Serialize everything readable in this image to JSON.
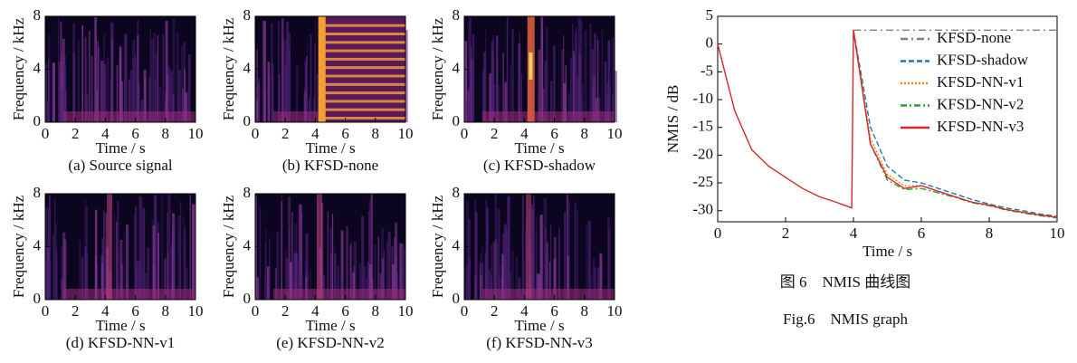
{
  "chart_data": [
    {
      "type": "spectrogram",
      "caption": "(a) Source signal",
      "xlabel": "Time / s",
      "ylabel": "Frequency / kHz",
      "xlim": [
        0,
        10
      ],
      "xticks": [
        0,
        2,
        4,
        6,
        8,
        10
      ],
      "ylim": [
        0,
        8
      ],
      "yticks": [
        0,
        4,
        8
      ]
    },
    {
      "type": "spectrogram",
      "caption": "(b) KFSD-none",
      "xlabel": "Time / s",
      "ylabel": "Frequency / kHz",
      "xlim": [
        0,
        10
      ],
      "xticks": [
        0,
        2,
        4,
        6,
        8,
        10
      ],
      "ylim": [
        0,
        8
      ],
      "yticks": [
        0,
        4,
        8
      ]
    },
    {
      "type": "spectrogram",
      "caption": "(c) KFSD-shadow",
      "xlabel": "Time / s",
      "ylabel": "Frequency / kHz",
      "xlim": [
        0,
        10
      ],
      "xticks": [
        0,
        2,
        4,
        6,
        8,
        10
      ],
      "ylim": [
        0,
        8
      ],
      "yticks": [
        0,
        4,
        8
      ]
    },
    {
      "type": "spectrogram",
      "caption": "(d) KFSD-NN-v1",
      "xlabel": "Time / s",
      "ylabel": "Frequency / kHz",
      "xlim": [
        0,
        10
      ],
      "xticks": [
        0,
        2,
        4,
        6,
        8,
        10
      ],
      "ylim": [
        0,
        8
      ],
      "yticks": [
        0,
        4,
        8
      ]
    },
    {
      "type": "spectrogram",
      "caption": "(e) KFSD-NN-v2",
      "xlabel": "Time / s",
      "ylabel": "Frequency / kHz",
      "xlim": [
        0,
        10
      ],
      "xticks": [
        0,
        2,
        4,
        6,
        8,
        10
      ],
      "ylim": [
        0,
        8
      ],
      "yticks": [
        0,
        4,
        8
      ]
    },
    {
      "type": "spectrogram",
      "caption": "(f) KFSD-NN-v3",
      "xlabel": "Time / s",
      "ylabel": "Frequency / kHz",
      "xlim": [
        0,
        10
      ],
      "xticks": [
        0,
        2,
        4,
        6,
        8,
        10
      ],
      "ylim": [
        0,
        8
      ],
      "yticks": [
        0,
        4,
        8
      ]
    },
    {
      "type": "line",
      "captions": [
        "图 6　NMIS 曲线图",
        "Fig.6　NMIS graph"
      ],
      "xlabel": "Time / s",
      "ylabel": "NMIS / dB",
      "xlim": [
        0,
        10
      ],
      "xticks": [
        0,
        2,
        4,
        6,
        8,
        10
      ],
      "ylim": [
        -32,
        5
      ],
      "yticks": [
        5,
        0,
        -5,
        -10,
        -15,
        -20,
        -25,
        -30
      ],
      "legend": "upper right",
      "x": [
        0,
        0.5,
        1,
        1.5,
        2,
        2.5,
        3,
        3.5,
        3.95,
        4,
        4.5,
        5,
        5.5,
        6,
        6.5,
        7,
        7.5,
        8,
        8.5,
        9,
        9.5,
        10
      ],
      "series": [
        {
          "name": "KFSD-none",
          "color": "#808080",
          "dash": "8,4,2,4",
          "values": [
            null,
            null,
            null,
            null,
            null,
            null,
            null,
            null,
            null,
            2.5,
            2.5,
            2.5,
            2.5,
            2.5,
            2.5,
            2.5,
            2.5,
            2.5,
            2.5,
            2.5,
            2.5,
            2.5
          ]
        },
        {
          "name": "KFSD-shadow",
          "color": "#1f77b4",
          "dash": "6,3",
          "values": [
            null,
            null,
            null,
            null,
            null,
            null,
            null,
            null,
            null,
            2.5,
            -15,
            -22,
            -24.5,
            -25,
            -26,
            -27,
            -28,
            -28.8,
            -29.5,
            -30,
            -30.6,
            -31
          ]
        },
        {
          "name": "KFSD-NN-v1",
          "color": "#ff7f0e",
          "dash": "2,2",
          "values": [
            null,
            null,
            null,
            null,
            null,
            null,
            null,
            null,
            null,
            2.5,
            -17,
            -23.5,
            -25.5,
            -25.5,
            -26.5,
            -27.5,
            -28.5,
            -29,
            -29.8,
            -30.3,
            -30.8,
            -31.2
          ]
        },
        {
          "name": "KFSD-NN-v2",
          "color": "#2ca02c",
          "dash": "7,3,2,3",
          "values": [
            null,
            null,
            null,
            null,
            null,
            null,
            null,
            null,
            null,
            2.5,
            -18,
            -24.5,
            -26.2,
            -26,
            -26.8,
            -27.6,
            -28.6,
            -29.1,
            -29.9,
            -30.4,
            -30.9,
            -31.3
          ]
        },
        {
          "name": "KFSD-NN-v3",
          "color": "#d62728",
          "dash": "",
          "values": [
            0,
            -12,
            -19,
            -22,
            -24,
            -26,
            -27.5,
            -28.5,
            -29.5,
            2.5,
            -18,
            -24,
            -26,
            -25.5,
            -26.5,
            -27.5,
            -28.5,
            -29,
            -29.8,
            -30.3,
            -30.8,
            -31.2
          ]
        }
      ]
    }
  ]
}
